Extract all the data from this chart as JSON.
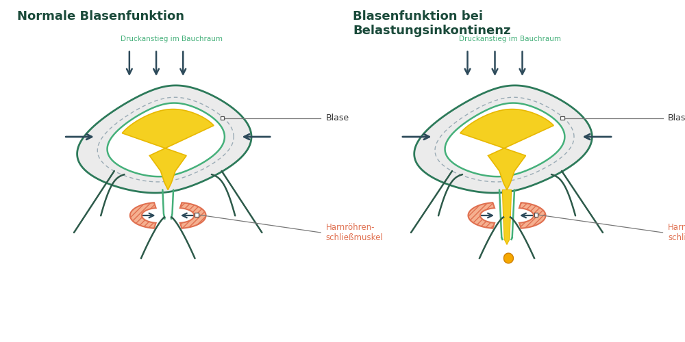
{
  "title_left": "Normale Blasenfunktion",
  "title_right": "Blasenfunktion bei\nBelastungsinkontinenz",
  "label_pressure": "Druckanstieg im Bauchraum",
  "label_blase": "Blase",
  "label_harnroehre": "Harnröhren-\nschließmuskel",
  "color_title": "#1a4a3a",
  "color_green_dark": "#2d7a5a",
  "color_green_light": "#45b07a",
  "color_green_label": "#45b07a",
  "color_yellow": "#f5d020",
  "color_yellow_dark": "#e8b800",
  "color_orange": "#e07050",
  "color_sphincter_fill": "#f5b090",
  "color_body": "#2d5a4a",
  "color_dashed": "#9aabb5",
  "color_outer_fill": "#ebebeb",
  "color_line": "#888888",
  "color_bg": "#ffffff",
  "color_text_dark": "#333333",
  "color_arrow_dark": "#2d4a5a"
}
